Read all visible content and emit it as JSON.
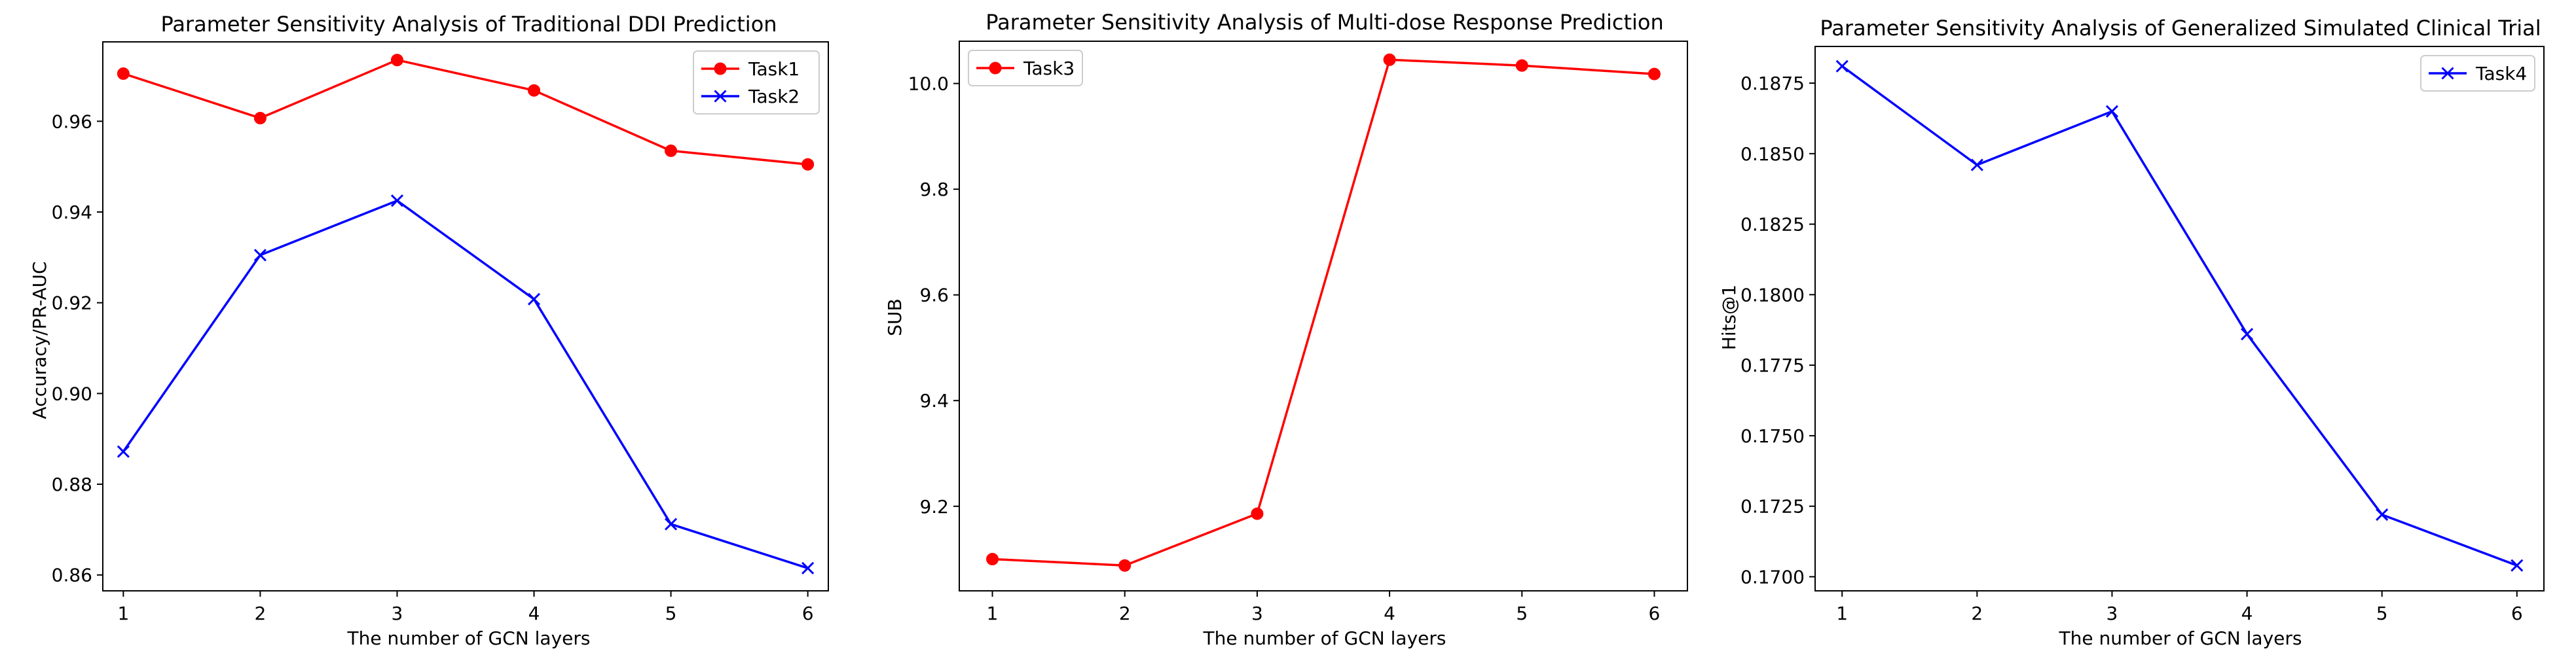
{
  "chart_data": [
    {
      "type": "line",
      "title": "Parameter Sensitivity Analysis of Traditional DDI Prediction",
      "xlabel": "The number of GCN layers",
      "ylabel": "Accuracy/PR-AUC",
      "x": [
        1,
        2,
        3,
        4,
        5,
        6
      ],
      "xlim": [
        0.85,
        6.15
      ],
      "ylim": [
        0.8565,
        0.9775
      ],
      "yticks": [
        0.86,
        0.88,
        0.9,
        0.92,
        0.94,
        0.96
      ],
      "ytick_labels": [
        "0.86",
        "0.88",
        "0.90",
        "0.92",
        "0.94",
        "0.96"
      ],
      "legend": "upper right",
      "grid": false,
      "series": [
        {
          "name": "Task1",
          "values": [
            0.9705,
            0.9607,
            0.9735,
            0.9668,
            0.9535,
            0.9505
          ],
          "color": "#ff0000",
          "marker": "circle"
        },
        {
          "name": "Task2",
          "values": [
            0.8872,
            0.9305,
            0.9425,
            0.9208,
            0.8712,
            0.8615
          ],
          "color": "#0000ff",
          "marker": "x"
        }
      ]
    },
    {
      "type": "line",
      "title": "Parameter Sensitivity Analysis of Multi-dose Response Prediction",
      "xlabel": "The number of GCN layers",
      "ylabel": "SUB",
      "x": [
        1,
        2,
        3,
        4,
        5,
        6
      ],
      "xlim": [
        0.75,
        6.25
      ],
      "ylim": [
        9.04,
        10.08
      ],
      "yticks": [
        9.2,
        9.4,
        9.6,
        9.8,
        10.0
      ],
      "ytick_labels": [
        "9.2",
        "9.4",
        "9.6",
        "9.8",
        "10.0"
      ],
      "legend": "upper left",
      "grid": false,
      "series": [
        {
          "name": "Task3",
          "values": [
            9.1,
            9.088,
            9.186,
            10.045,
            10.034,
            10.018
          ],
          "color": "#ff0000",
          "marker": "circle"
        }
      ]
    },
    {
      "type": "line",
      "title": "Parameter Sensitivity Analysis of Generalized Simulated Clinical Trial",
      "xlabel": "The number of GCN layers",
      "ylabel": "Hits@1",
      "x": [
        1,
        2,
        3,
        4,
        5,
        6
      ],
      "xlim": [
        0.8,
        6.2
      ],
      "ylim": [
        0.1695,
        0.1888
      ],
      "yticks": [
        0.17,
        0.1725,
        0.175,
        0.1775,
        0.18,
        0.1825,
        0.185,
        0.1875
      ],
      "ytick_labels": [
        "0.1700",
        "0.1725",
        "0.1750",
        "0.1775",
        "0.1800",
        "0.1825",
        "0.1850",
        "0.1875"
      ],
      "legend": "upper right",
      "grid": false,
      "series": [
        {
          "name": "Task4",
          "values": [
            0.1881,
            0.1846,
            0.1865,
            0.1786,
            0.1722,
            0.1704
          ],
          "color": "#0000ff",
          "marker": "x"
        }
      ]
    }
  ]
}
